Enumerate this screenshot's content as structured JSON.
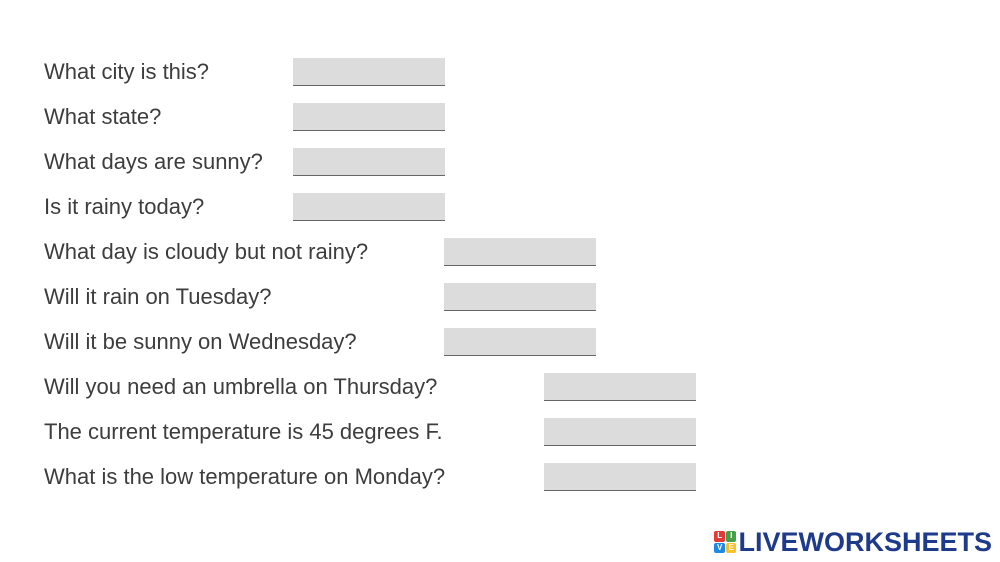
{
  "worksheet": {
    "questions": [
      {
        "text": "What city is this?",
        "answer": ""
      },
      {
        "text": "What state?",
        "answer": ""
      },
      {
        "text": "What days are sunny?",
        "answer": ""
      },
      {
        "text": "Is it rainy today?",
        "answer": ""
      },
      {
        "text": "What day is cloudy but not rainy?",
        "answer": ""
      },
      {
        "text": "Will it rain on Tuesday?",
        "answer": ""
      },
      {
        "text": "Will it be sunny on Wednesday?",
        "answer": ""
      },
      {
        "text": "Will you need an umbrella on Thursday?",
        "answer": ""
      },
      {
        "text": "The current temperature is 45 degrees F.",
        "answer": ""
      },
      {
        "text": "What is the low temperature on Monday?",
        "answer": ""
      }
    ]
  },
  "branding": {
    "logo_text": "LIVEWORKSHEETS",
    "logo_mark_letters": [
      "L",
      "I",
      "V",
      "E"
    ],
    "logo_mark_colors": [
      "#e53935",
      "#43a047",
      "#1e88e5",
      "#fbc02d"
    ],
    "logo_text_color": "#1e3a8a"
  },
  "colors": {
    "question_text": "#3d3d3d",
    "answer_box_fill": "#dcdcdc"
  }
}
